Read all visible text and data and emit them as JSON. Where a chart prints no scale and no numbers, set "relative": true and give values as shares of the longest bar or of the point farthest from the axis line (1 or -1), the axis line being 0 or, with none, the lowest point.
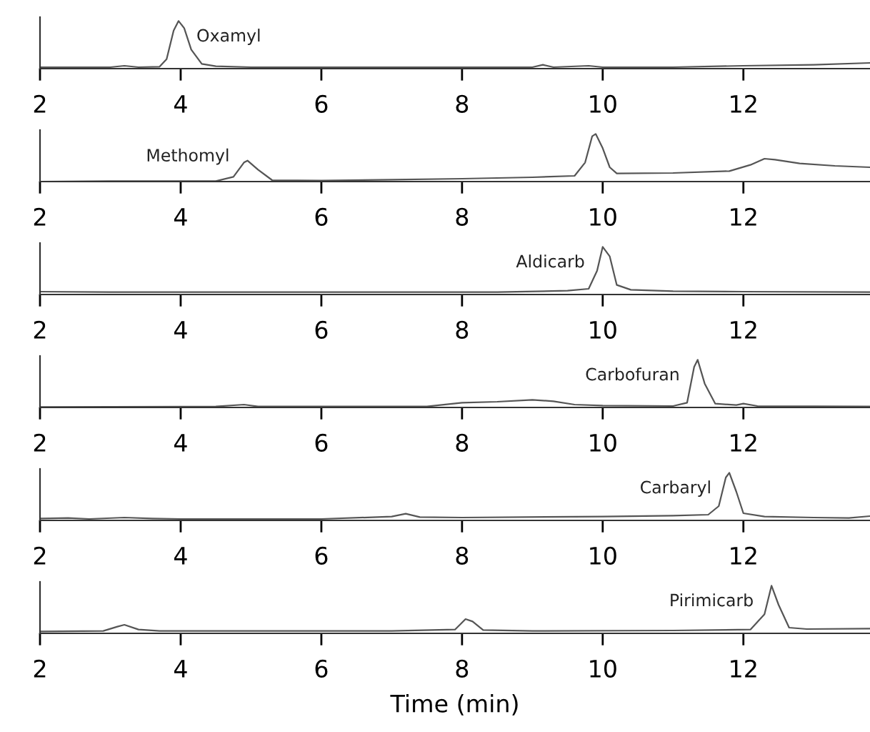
{
  "chart_data": [
    {
      "type": "line",
      "relative": true,
      "tick_labels": "x",
      "xlim": [
        2,
        13.8
      ],
      "xticks": [
        2,
        4,
        6,
        8,
        10,
        12
      ],
      "annotations": [
        {
          "text": "Oxamyl",
          "x": 3.97,
          "y": 1.0
        }
      ],
      "series": [
        {
          "color": "#555555",
          "x": [
            2,
            2.5,
            3.0,
            3.2,
            3.4,
            3.7,
            3.8,
            3.9,
            3.97,
            4.05,
            4.15,
            4.3,
            4.5,
            5,
            7,
            9.0,
            9.15,
            9.3,
            9.8,
            10,
            11,
            12,
            13,
            13.8
          ],
          "values": [
            0.03,
            0.03,
            0.03,
            0.06,
            0.03,
            0.04,
            0.2,
            0.8,
            1.0,
            0.85,
            0.4,
            0.1,
            0.05,
            0.03,
            0.03,
            0.03,
            0.08,
            0.03,
            0.06,
            0.03,
            0.03,
            0.06,
            0.08,
            0.12
          ]
        }
      ]
    },
    {
      "type": "line",
      "relative": true,
      "tick_labels": "x",
      "xlim": [
        2,
        13.8
      ],
      "xticks": [
        2,
        4,
        6,
        8,
        10,
        12
      ],
      "annotations": [
        {
          "text": "Methomyl",
          "x": 4.95,
          "y": 0.44
        }
      ],
      "series": [
        {
          "color": "#555555",
          "x": [
            2,
            3,
            4.5,
            4.75,
            4.9,
            4.95,
            5.1,
            5.3,
            6,
            7,
            8,
            9,
            9.6,
            9.75,
            9.85,
            9.9,
            10.0,
            10.1,
            10.2,
            11,
            11.8,
            12.1,
            12.3,
            12.45,
            12.8,
            13.3,
            13.8
          ],
          "values": [
            0.0,
            0.01,
            0.01,
            0.1,
            0.4,
            0.44,
            0.25,
            0.03,
            0.02,
            0.04,
            0.06,
            0.09,
            0.12,
            0.4,
            0.95,
            1.0,
            0.7,
            0.3,
            0.17,
            0.18,
            0.22,
            0.35,
            0.48,
            0.46,
            0.38,
            0.33,
            0.3
          ]
        }
      ]
    },
    {
      "type": "line",
      "relative": true,
      "tick_labels": "x",
      "xlim": [
        2,
        13.8
      ],
      "xticks": [
        2,
        4,
        6,
        8,
        10,
        12
      ],
      "annotations": [
        {
          "text": "Aldicarb",
          "x": 10.0,
          "y": 1.0
        }
      ],
      "series": [
        {
          "color": "#555555",
          "x": [
            2,
            3,
            5,
            7,
            8.5,
            9.5,
            9.8,
            9.92,
            10.0,
            10.1,
            10.2,
            10.4,
            11,
            12,
            13.8
          ],
          "values": [
            0.06,
            0.05,
            0.05,
            0.05,
            0.05,
            0.08,
            0.12,
            0.5,
            1.0,
            0.8,
            0.2,
            0.1,
            0.07,
            0.06,
            0.05
          ]
        }
      ]
    },
    {
      "type": "line",
      "relative": true,
      "tick_labels": "x",
      "xlim": [
        2,
        13.8
      ],
      "xticks": [
        2,
        4,
        6,
        8,
        10,
        12
      ],
      "annotations": [
        {
          "text": "Carbofuran",
          "x": 11.35,
          "y": 1.0
        }
      ],
      "series": [
        {
          "color": "#555555",
          "x": [
            2,
            4.5,
            4.9,
            5.1,
            7.5,
            8.0,
            8.5,
            9.0,
            9.3,
            9.6,
            10,
            11.0,
            11.2,
            11.3,
            11.35,
            11.45,
            11.6,
            11.9,
            12.0,
            12.2,
            13.8
          ],
          "values": [
            0.01,
            0.02,
            0.06,
            0.02,
            0.02,
            0.1,
            0.12,
            0.16,
            0.13,
            0.06,
            0.04,
            0.03,
            0.1,
            0.85,
            1.0,
            0.5,
            0.08,
            0.05,
            0.08,
            0.03,
            0.02
          ]
        }
      ]
    },
    {
      "type": "line",
      "relative": true,
      "tick_labels": "x",
      "xlim": [
        2,
        13.8
      ],
      "xticks": [
        2,
        4,
        6,
        8,
        10,
        12
      ],
      "annotations": [
        {
          "text": "Carbaryl",
          "x": 11.8,
          "y": 1.0
        }
      ],
      "series": [
        {
          "color": "#555555",
          "x": [
            2,
            2.4,
            2.7,
            3.2,
            3.6,
            4,
            6,
            7.0,
            7.2,
            7.4,
            8,
            10,
            11,
            11.5,
            11.65,
            11.75,
            11.8,
            11.9,
            12.0,
            12.3,
            13,
            13.5,
            13.8
          ],
          "values": [
            0.04,
            0.05,
            0.03,
            0.06,
            0.04,
            0.03,
            0.03,
            0.08,
            0.14,
            0.07,
            0.06,
            0.08,
            0.1,
            0.12,
            0.3,
            0.9,
            1.0,
            0.6,
            0.15,
            0.08,
            0.06,
            0.05,
            0.09
          ]
        }
      ]
    },
    {
      "type": "line",
      "relative": true,
      "tick_labels": "x",
      "xlim": [
        2,
        13.8
      ],
      "xticks": [
        2,
        4,
        6,
        8,
        10,
        12
      ],
      "xlabel": "Time (min)",
      "annotations": [
        {
          "text": "Pirimicarb",
          "x": 12.4,
          "y": 1.0
        }
      ],
      "series": [
        {
          "color": "#555555",
          "x": [
            2,
            2.9,
            3.1,
            3.2,
            3.4,
            3.7,
            7,
            7.9,
            8.05,
            8.15,
            8.3,
            9,
            11,
            12.1,
            12.3,
            12.4,
            12.5,
            12.65,
            12.9,
            13.8
          ],
          "values": [
            0.04,
            0.05,
            0.14,
            0.18,
            0.08,
            0.05,
            0.05,
            0.08,
            0.3,
            0.25,
            0.07,
            0.05,
            0.06,
            0.08,
            0.4,
            1.0,
            0.6,
            0.12,
            0.09,
            0.1
          ]
        }
      ]
    }
  ]
}
